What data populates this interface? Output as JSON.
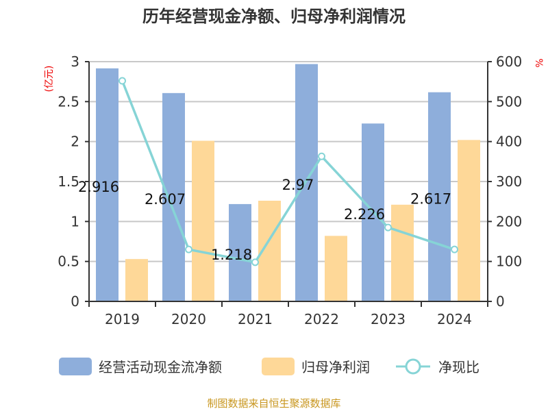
{
  "chart_data": {
    "type": "bar",
    "title": "历年经营现金净额、归母净利润情况",
    "categories": [
      "2019",
      "2020",
      "2021",
      "2022",
      "2023",
      "2024"
    ],
    "series": [
      {
        "name": "经营活动现金流净额",
        "type": "bar",
        "axis": "left",
        "color": "#8eaedb",
        "values": [
          2.916,
          2.607,
          1.218,
          2.97,
          2.226,
          2.617
        ],
        "labels": [
          "2.916",
          "2.607",
          "1.218",
          "2.97",
          "2.226",
          "2.617"
        ]
      },
      {
        "name": "归母净利润",
        "type": "bar",
        "axis": "left",
        "color": "#fed898",
        "values": [
          0.53,
          2.01,
          1.26,
          0.82,
          1.21,
          2.02
        ]
      },
      {
        "name": "净现比",
        "type": "line",
        "axis": "right",
        "color": "#86d4d6",
        "values": [
          552,
          130,
          98,
          363,
          185,
          130
        ]
      }
    ],
    "ylabel": "(亿元)",
    "y2label": "%",
    "ylim": [
      0,
      3
    ],
    "y2lim": [
      0,
      600
    ],
    "yticks": [
      "0",
      "0.5",
      "1",
      "1.5",
      "2",
      "2.5",
      "3"
    ],
    "y2ticks": [
      "0",
      "100",
      "200",
      "300",
      "400",
      "500",
      "600"
    ],
    "legend_position": "bottom",
    "grid": true
  },
  "source": "制图数据来自恒生聚源数据库"
}
